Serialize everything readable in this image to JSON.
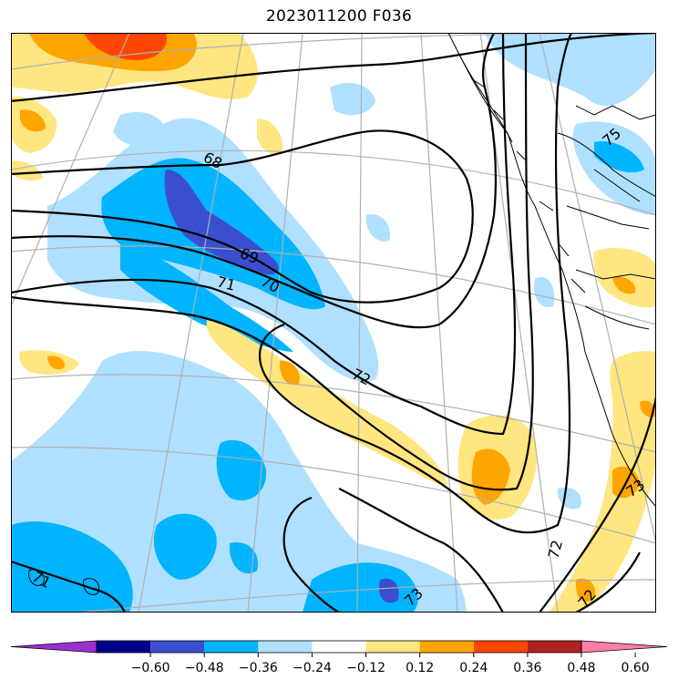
{
  "title": "2023011200 F036",
  "colorbar": {
    "colors": [
      "#9b30d0",
      "#00008b",
      "#3a4fd0",
      "#00b4ff",
      "#b0e0ff",
      "#ffffff",
      "#ffe680",
      "#ffa500",
      "#ff4500",
      "#b22222",
      "#ff7fa8"
    ],
    "ticks": [
      "−0.60",
      "−0.48",
      "−0.36",
      "−0.24",
      "−0.12",
      "0.12",
      "0.24",
      "0.36",
      "0.48",
      "0.60"
    ]
  },
  "contour_labels": [
    {
      "id": "c68",
      "text": "68"
    },
    {
      "id": "c69",
      "text": "69"
    },
    {
      "id": "c70",
      "text": "70"
    },
    {
      "id": "c71a",
      "text": "71"
    },
    {
      "id": "c72a",
      "text": "72"
    },
    {
      "id": "c72b",
      "text": "72"
    },
    {
      "id": "c73a",
      "text": "73"
    },
    {
      "id": "c73b",
      "text": "73"
    },
    {
      "id": "c71b",
      "text": "71"
    },
    {
      "id": "c72c",
      "text": "72"
    },
    {
      "id": "c75",
      "text": "75"
    }
  ]
}
